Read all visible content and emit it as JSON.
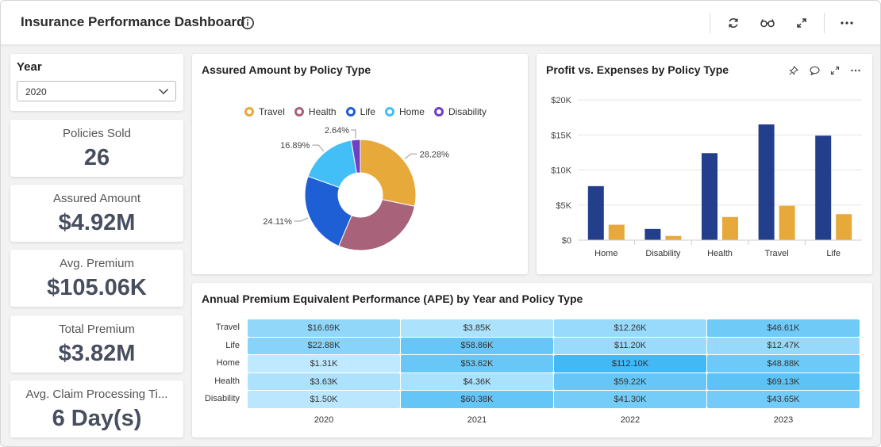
{
  "header": {
    "title": "Insurance Performance Dashboard"
  },
  "filters": {
    "year_label": "Year",
    "year_value": "2020"
  },
  "kpis": [
    {
      "label": "Policies Sold",
      "value": "26"
    },
    {
      "label": "Assured Amount",
      "value": "$4.92M"
    },
    {
      "label": "Avg. Premium",
      "value": "$105.06K"
    },
    {
      "label": "Total Premium",
      "value": "$3.82M"
    },
    {
      "label": "Avg. Claim Processing Ti...",
      "value": "6 Day(s)"
    }
  ],
  "colors": {
    "travel": "#e8a93b",
    "health": "#a8627a",
    "life": "#1e5fd6",
    "home": "#43bff7",
    "disability": "#6f40c4",
    "profit": "#233f8c",
    "expenses": "#e8a93b",
    "accent_text": "#474e5e"
  },
  "donut": {
    "title": "Assured Amount by Policy Type",
    "legend": [
      "Travel",
      "Health",
      "Life",
      "Home",
      "Disability"
    ]
  },
  "bar_panel": {
    "title": "Profit vs. Expenses by Policy Type"
  },
  "heatmap_panel": {
    "title": "Annual Premium Equivalent Performance (APE) by Year and Policy Type"
  },
  "chart_data": [
    {
      "type": "pie",
      "title": "Assured Amount by Policy Type",
      "donut": true,
      "categories": [
        "Travel",
        "Health",
        "Life",
        "Home",
        "Disability"
      ],
      "values": [
        28.28,
        28.08,
        24.11,
        16.89,
        2.64
      ],
      "data_labels": [
        "28.28%",
        "",
        "24.11%",
        "16.89%",
        "2.64%"
      ],
      "legend_position": "top"
    },
    {
      "type": "bar",
      "title": "Profit vs. Expenses by Policy Type",
      "categories": [
        "Home",
        "Disability",
        "Health",
        "Travel",
        "Life"
      ],
      "series": [
        {
          "name": "Profit",
          "values": [
            7700,
            1600,
            12400,
            16500,
            14900
          ]
        },
        {
          "name": "Expenses",
          "values": [
            2200,
            600,
            3300,
            4900,
            3700
          ]
        }
      ],
      "yticks": [
        "$0",
        "$5K",
        "$10K",
        "$15K",
        "$20K"
      ],
      "ylim": [
        0,
        20000
      ],
      "grid": true
    },
    {
      "type": "heatmap",
      "title": "Annual Premium Equivalent Performance (APE) by Year and Policy Type",
      "columns": [
        "2020",
        "2021",
        "2022",
        "2023"
      ],
      "rows": [
        "Travel",
        "Life",
        "Home",
        "Health",
        "Disability"
      ],
      "labels": [
        [
          "$16.69K",
          "$3.85K",
          "$12.26K",
          "$46.61K"
        ],
        [
          "$22.88K",
          "$58.86K",
          "$11.20K",
          "$12.47K"
        ],
        [
          "$1.31K",
          "$53.62K",
          "$112.10K",
          "$48.88K"
        ],
        [
          "$3.63K",
          "$4.36K",
          "$59.22K",
          "$69.13K"
        ],
        [
          "$1.50K",
          "$60.38K",
          "$41.30K",
          "$43.65K"
        ]
      ],
      "values": [
        [
          16690,
          3850,
          12260,
          46610
        ],
        [
          22880,
          58860,
          11200,
          12470
        ],
        [
          1310,
          53620,
          112100,
          48880
        ],
        [
          3630,
          4360,
          59220,
          69130
        ],
        [
          1500,
          60380,
          41300,
          43650
        ]
      ]
    }
  ]
}
